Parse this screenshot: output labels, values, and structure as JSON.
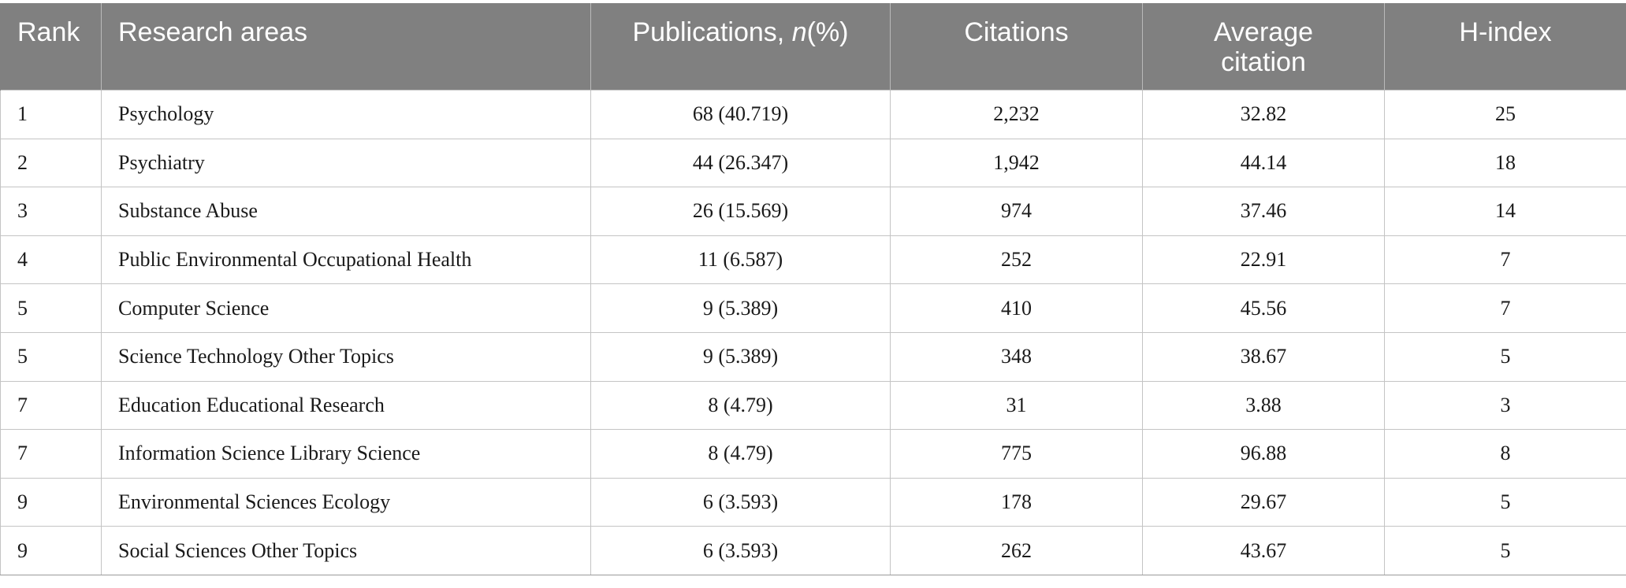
{
  "table": {
    "headers": {
      "rank": "Rank",
      "research_areas": "Research areas",
      "publications_prefix": "Publications, ",
      "publications_italic": "n",
      "publications_suffix": "(%)",
      "citations": "Citations",
      "average_citation_line1": "Average",
      "average_citation_line2": "citation",
      "h_index": "H-index"
    },
    "rows": [
      {
        "rank": "1",
        "area": "Psychology",
        "publications": "68 (40.719)",
        "citations": "2,232",
        "average_citation": "32.82",
        "h_index": "25"
      },
      {
        "rank": "2",
        "area": "Psychiatry",
        "publications": "44 (26.347)",
        "citations": "1,942",
        "average_citation": "44.14",
        "h_index": "18"
      },
      {
        "rank": "3",
        "area": "Substance Abuse",
        "publications": "26 (15.569)",
        "citations": "974",
        "average_citation": "37.46",
        "h_index": "14"
      },
      {
        "rank": "4",
        "area": "Public Environmental Occupational Health",
        "publications": "11 (6.587)",
        "citations": "252",
        "average_citation": "22.91",
        "h_index": "7"
      },
      {
        "rank": "5",
        "area": "Computer Science",
        "publications": "9 (5.389)",
        "citations": "410",
        "average_citation": "45.56",
        "h_index": "7"
      },
      {
        "rank": "5",
        "area": "Science Technology Other Topics",
        "publications": "9 (5.389)",
        "citations": "348",
        "average_citation": "38.67",
        "h_index": "5"
      },
      {
        "rank": "7",
        "area": "Education Educational Research",
        "publications": "8 (4.79)",
        "citations": "31",
        "average_citation": "3.88",
        "h_index": "3"
      },
      {
        "rank": "7",
        "area": "Information Science Library Science",
        "publications": "8 (4.79)",
        "citations": "775",
        "average_citation": "96.88",
        "h_index": "8"
      },
      {
        "rank": "9",
        "area": "Environmental Sciences Ecology",
        "publications": "6 (3.593)",
        "citations": "178",
        "average_citation": "29.67",
        "h_index": "5"
      },
      {
        "rank": "9",
        "area": "Social Sciences Other Topics",
        "publications": "6 (3.593)",
        "citations": "262",
        "average_citation": "43.67",
        "h_index": "5"
      }
    ]
  },
  "colors": {
    "header_background": "#808080",
    "header_text": "#ffffff",
    "grid_line": "#c4c4c4",
    "body_text": "#1a1a1a"
  }
}
